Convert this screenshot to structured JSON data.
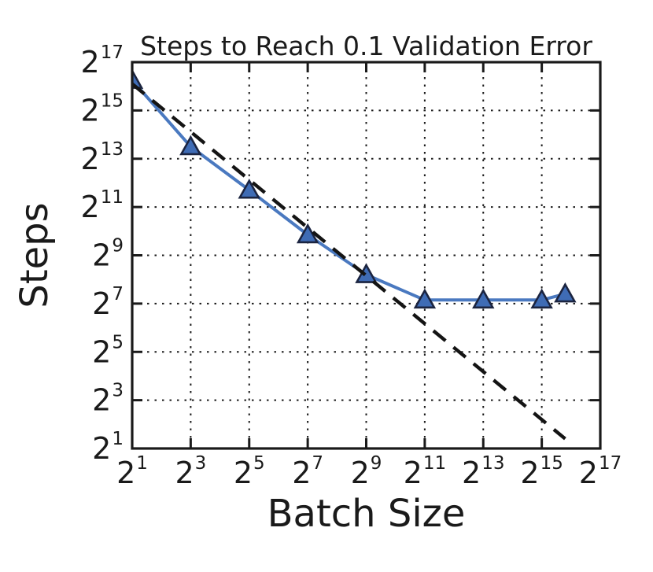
{
  "figure": {
    "background": "#ffffff"
  },
  "chart_data": {
    "type": "line",
    "title": "Steps to Reach 0.1 Validation Error",
    "xlabel": "Batch Size",
    "ylabel": "Steps",
    "x_scale": "log2",
    "y_scale": "log2",
    "grid": "dotted",
    "legend": "none",
    "axis_tick_base": "2",
    "x_tick_exponents": [
      1,
      3,
      5,
      7,
      9,
      11,
      13,
      15,
      17
    ],
    "y_tick_exponents": [
      1,
      3,
      5,
      7,
      9,
      11,
      13,
      15,
      17
    ],
    "xlim_exponents": [
      1,
      17
    ],
    "ylim_exponents": [
      1,
      17
    ],
    "colors": {
      "line": "#4a79c0",
      "marker_fill": "#3f6cb5",
      "marker_edge": "#1b2440",
      "dashed_reference": "#141414",
      "grid": "#1a1a1a",
      "spine": "#1a1a1a",
      "text": "#1a1a1a"
    },
    "series": [
      {
        "id": "steps-curve",
        "line_style": "solid",
        "marker": "triangle-up",
        "points_log2": [
          [
            1,
            16.25
          ],
          [
            3,
            13.5
          ],
          [
            5,
            11.7
          ],
          [
            7,
            9.85
          ],
          [
            9,
            8.2
          ],
          [
            11,
            7.15
          ],
          [
            13,
            7.15
          ],
          [
            15,
            7.15
          ],
          [
            15.8,
            7.4
          ]
        ]
      },
      {
        "id": "linear-scaling-reference",
        "line_style": "dashed",
        "marker": "none",
        "points_log2": [
          [
            1,
            16.1
          ],
          [
            15.8,
            1.4
          ]
        ]
      }
    ]
  }
}
